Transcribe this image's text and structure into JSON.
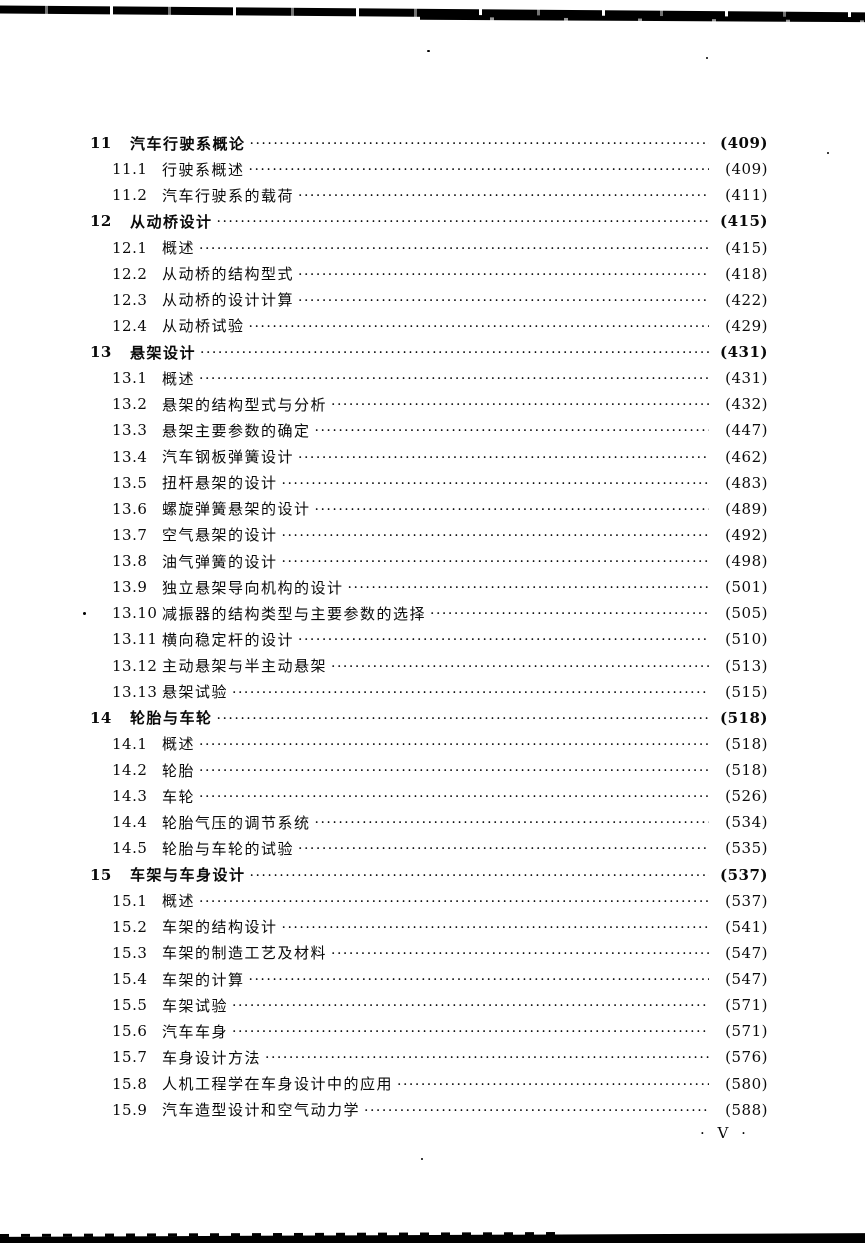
{
  "document": {
    "footer_page_number": "· V ·"
  },
  "toc": {
    "entries": [
      {
        "num": "11",
        "title": "汽车行驶系概论",
        "page": "(409)",
        "level": 1
      },
      {
        "num": "11.1",
        "title": "行驶系概述",
        "page": "(409)",
        "level": 2
      },
      {
        "num": "11.2",
        "title": "汽车行驶系的载荷",
        "page": "(411)",
        "level": 2
      },
      {
        "num": "12",
        "title": "从动桥设计",
        "page": "(415)",
        "level": 1
      },
      {
        "num": "12.1",
        "title": "概述",
        "page": "(415)",
        "level": 2
      },
      {
        "num": "12.2",
        "title": "从动桥的结构型式",
        "page": "(418)",
        "level": 2
      },
      {
        "num": "12.3",
        "title": "从动桥的设计计算",
        "page": "(422)",
        "level": 2
      },
      {
        "num": "12.4",
        "title": "从动桥试验",
        "page": "(429)",
        "level": 2
      },
      {
        "num": "13",
        "title": "悬架设计",
        "page": "(431)",
        "level": 1
      },
      {
        "num": "13.1",
        "title": "概述",
        "page": "(431)",
        "level": 2
      },
      {
        "num": "13.2",
        "title": "悬架的结构型式与分析",
        "page": "(432)",
        "level": 2
      },
      {
        "num": "13.3",
        "title": "悬架主要参数的确定",
        "page": "(447)",
        "level": 2
      },
      {
        "num": "13.4",
        "title": "汽车钢板弹簧设计",
        "page": "(462)",
        "level": 2
      },
      {
        "num": "13.5",
        "title": "扭杆悬架的设计",
        "page": "(483)",
        "level": 2
      },
      {
        "num": "13.6",
        "title": "螺旋弹簧悬架的设计",
        "page": "(489)",
        "level": 2
      },
      {
        "num": "13.7",
        "title": "空气悬架的设计",
        "page": "(492)",
        "level": 2
      },
      {
        "num": "13.8",
        "title": "油气弹簧的设计",
        "page": "(498)",
        "level": 2
      },
      {
        "num": "13.9",
        "title": "独立悬架导向机构的设计",
        "page": "(501)",
        "level": 2
      },
      {
        "num": "13.10",
        "title": "减振器的结构类型与主要参数的选择",
        "page": "(505)",
        "level": 2
      },
      {
        "num": "13.11",
        "title": "横向稳定杆的设计",
        "page": "(510)",
        "level": 2
      },
      {
        "num": "13.12",
        "title": "主动悬架与半主动悬架",
        "page": "(513)",
        "level": 2
      },
      {
        "num": "13.13",
        "title": "悬架试验",
        "page": "(515)",
        "level": 2
      },
      {
        "num": "14",
        "title": "轮胎与车轮",
        "page": "(518)",
        "level": 1
      },
      {
        "num": "14.1",
        "title": "概述",
        "page": "(518)",
        "level": 2
      },
      {
        "num": "14.2",
        "title": "轮胎",
        "page": "(518)",
        "level": 2
      },
      {
        "num": "14.3",
        "title": "车轮",
        "page": "(526)",
        "level": 2
      },
      {
        "num": "14.4",
        "title": "轮胎气压的调节系统",
        "page": "(534)",
        "level": 2
      },
      {
        "num": "14.5",
        "title": "轮胎与车轮的试验",
        "page": "(535)",
        "level": 2
      },
      {
        "num": "15",
        "title": "车架与车身设计",
        "page": "(537)",
        "level": 1
      },
      {
        "num": "15.1",
        "title": "概述",
        "page": "(537)",
        "level": 2
      },
      {
        "num": "15.2",
        "title": "车架的结构设计",
        "page": "(541)",
        "level": 2
      },
      {
        "num": "15.3",
        "title": "车架的制造工艺及材料",
        "page": "(547)",
        "level": 2
      },
      {
        "num": "15.4",
        "title": "车架的计算",
        "page": "(547)",
        "level": 2
      },
      {
        "num": "15.5",
        "title": "车架试验",
        "page": "(571)",
        "level": 2
      },
      {
        "num": "15.6",
        "title": "汽车车身",
        "page": "(571)",
        "level": 2
      },
      {
        "num": "15.7",
        "title": "车身设计方法",
        "page": "(576)",
        "level": 2
      },
      {
        "num": "15.8",
        "title": "人机工程学在车身设计中的应用",
        "page": "(580)",
        "level": 2
      },
      {
        "num": "15.9",
        "title": "汽车造型设计和空气动力学",
        "page": "(588)",
        "level": 2
      }
    ]
  }
}
